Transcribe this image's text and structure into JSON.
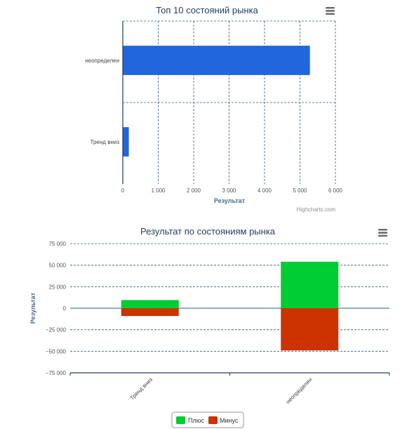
{
  "chart_data": [
    {
      "type": "bar",
      "orientation": "horizontal",
      "title": "Топ 10 состояний рынка",
      "categories": [
        "неопределен",
        "Тренд вниз"
      ],
      "series": [
        {
          "values": [
            5280,
            170
          ]
        }
      ],
      "xlabel": "Результат",
      "ylabel": "",
      "xlim": [
        0,
        6000
      ],
      "tick_labels": [
        "0",
        "1 000",
        "2 000",
        "3 000",
        "4 000",
        "5 000",
        "6 000"
      ],
      "ticks": [
        0,
        1000,
        2000,
        3000,
        4000,
        5000,
        6000
      ],
      "grid": true,
      "bar_color": "#2166dd",
      "credits": "Highcharts.com"
    },
    {
      "type": "bar",
      "stacked": true,
      "title": "Результат по состояниям рынка",
      "categories": [
        "Тренд вниз",
        "неопределен"
      ],
      "series": [
        {
          "name": "Плюс",
          "values": [
            9500,
            54000
          ],
          "color": "#00cc33"
        },
        {
          "name": "Минус",
          "values": [
            -9000,
            -49000
          ],
          "color": "#cc3300"
        }
      ],
      "ylabel": "Результат",
      "xlabel": "",
      "ylim": [
        -75000,
        75000
      ],
      "ticks": [
        75000,
        50000,
        25000,
        0,
        -25000,
        -50000,
        -75000
      ],
      "tick_labels": [
        "75 000",
        "50 000",
        "25 000",
        "0",
        "−25 000",
        "−50 000",
        "−75 000"
      ],
      "grid": true,
      "legend_position": "bottom-center"
    }
  ]
}
